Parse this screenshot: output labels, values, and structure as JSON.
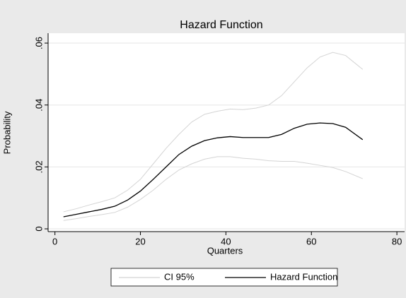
{
  "chart_data": {
    "type": "line",
    "title": "Hazard Function",
    "x_label": "Quarters",
    "y_label": "Probability",
    "x": [
      2,
      5,
      8,
      11,
      14,
      17,
      20,
      23,
      26,
      29,
      32,
      35,
      38,
      41,
      44,
      47,
      50,
      53,
      56,
      59,
      62,
      65,
      68,
      72
    ],
    "series": [
      {
        "name": "CI 95%",
        "color": "#d4d4d4",
        "upper": [
          0.0055,
          0.0065,
          0.0077,
          0.0088,
          0.01,
          0.0125,
          0.016,
          0.021,
          0.026,
          0.0305,
          0.0345,
          0.037,
          0.038,
          0.0387,
          0.0385,
          0.039,
          0.04,
          0.043,
          0.0475,
          0.052,
          0.0555,
          0.057,
          0.056,
          0.0515
        ],
        "lower": [
          0.0027,
          0.0033,
          0.004,
          0.0046,
          0.0053,
          0.007,
          0.0095,
          0.0125,
          0.016,
          0.019,
          0.021,
          0.0225,
          0.0233,
          0.0233,
          0.0228,
          0.0225,
          0.022,
          0.0218,
          0.0218,
          0.0212,
          0.0205,
          0.0198,
          0.0185,
          0.0162
        ]
      },
      {
        "name": "Hazard Function",
        "color": "#000000",
        "values": [
          0.0039,
          0.0047,
          0.0055,
          0.0063,
          0.0073,
          0.0093,
          0.0122,
          0.016,
          0.02,
          0.024,
          0.0267,
          0.0285,
          0.0294,
          0.0298,
          0.0295,
          0.0295,
          0.0295,
          0.0305,
          0.0325,
          0.0338,
          0.0342,
          0.034,
          0.0328,
          0.0288
        ]
      }
    ],
    "xlim": [
      -1.6,
      81.8
    ],
    "xticks": [
      0,
      20,
      40,
      60,
      80
    ],
    "ylim": [
      -0.0009,
      0.0632
    ],
    "yticks": [
      0,
      {
        "value": 0.02,
        "label": ".02"
      },
      {
        "value": 0.04,
        "label": ".04"
      },
      {
        "value": 0.06,
        "label": ".06"
      }
    ],
    "grid": true
  }
}
